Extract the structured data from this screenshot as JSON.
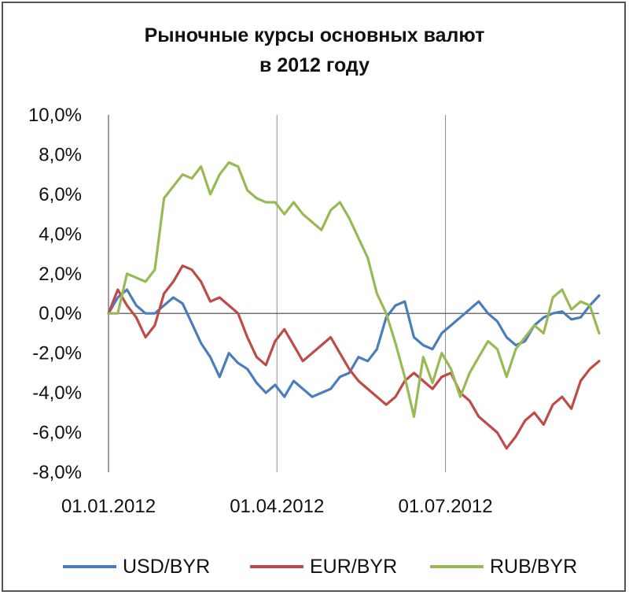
{
  "chart_data": {
    "type": "line",
    "title_lines": [
      "Рыночные курсы основных валют",
      "в 2012 году"
    ],
    "ylim": [
      -8,
      10
    ],
    "y_ticks": [
      10,
      8,
      6,
      4,
      2,
      0,
      -2,
      -4,
      -6,
      -8
    ],
    "y_tick_labels": [
      "10,0%",
      "8,0%",
      "6,0%",
      "4,0%",
      "2,0%",
      "0,0%",
      "-2,0%",
      "-4,0%",
      "-6,0%",
      "-8,0%"
    ],
    "x_ticks": [
      "2012-01-01",
      "2012-04-01",
      "2012-07-01"
    ],
    "x_tick_labels": [
      "01.01.2012",
      "01.04.2012",
      "01.07.2012"
    ],
    "xlim": [
      "2012-01-01",
      "2012-09-22"
    ],
    "grid": "vertical at x ticks",
    "legend_position": "bottom",
    "series": [
      {
        "name": "USD/BYR",
        "color": "#4a7ebb",
        "x": [
          "2012-01-01",
          "2012-01-06",
          "2012-01-11",
          "2012-01-16",
          "2012-01-21",
          "2012-01-26",
          "2012-01-31",
          "2012-02-05",
          "2012-02-10",
          "2012-02-15",
          "2012-02-20",
          "2012-02-25",
          "2012-03-01",
          "2012-03-06",
          "2012-03-11",
          "2012-03-16",
          "2012-03-21",
          "2012-03-26",
          "2012-03-31",
          "2012-04-05",
          "2012-04-10",
          "2012-04-15",
          "2012-04-20",
          "2012-04-25",
          "2012-04-30",
          "2012-05-05",
          "2012-05-10",
          "2012-05-15",
          "2012-05-20",
          "2012-05-25",
          "2012-05-30",
          "2012-06-04",
          "2012-06-09",
          "2012-06-14",
          "2012-06-19",
          "2012-06-24",
          "2012-06-29",
          "2012-07-04",
          "2012-07-09",
          "2012-07-14",
          "2012-07-19",
          "2012-07-24",
          "2012-07-29",
          "2012-08-03",
          "2012-08-08",
          "2012-08-13",
          "2012-08-18",
          "2012-08-23",
          "2012-08-28",
          "2012-09-02",
          "2012-09-07",
          "2012-09-12",
          "2012-09-17",
          "2012-09-22"
        ],
        "y": [
          0.0,
          0.8,
          1.2,
          0.4,
          0.0,
          0.0,
          0.4,
          0.8,
          0.5,
          -0.5,
          -1.5,
          -2.2,
          -3.2,
          -2.0,
          -2.5,
          -2.8,
          -3.5,
          -4.0,
          -3.6,
          -4.2,
          -3.4,
          -3.8,
          -4.2,
          -4.0,
          -3.8,
          -3.2,
          -3.0,
          -2.2,
          -2.4,
          -1.8,
          -0.2,
          0.4,
          0.6,
          -1.2,
          -1.6,
          -1.8,
          -1.0,
          -0.6,
          -0.2,
          0.2,
          0.6,
          0.0,
          -0.4,
          -1.2,
          -1.6,
          -1.4,
          -0.6,
          -0.2,
          0.0,
          0.1,
          -0.3,
          -0.2,
          0.4,
          0.9
        ]
      },
      {
        "name": "EUR/BYR",
        "color": "#be4b48",
        "x": [
          "2012-01-01",
          "2012-01-06",
          "2012-01-11",
          "2012-01-16",
          "2012-01-21",
          "2012-01-26",
          "2012-01-31",
          "2012-02-05",
          "2012-02-10",
          "2012-02-15",
          "2012-02-20",
          "2012-02-25",
          "2012-03-01",
          "2012-03-06",
          "2012-03-11",
          "2012-03-16",
          "2012-03-21",
          "2012-03-26",
          "2012-03-31",
          "2012-04-05",
          "2012-04-10",
          "2012-04-15",
          "2012-04-20",
          "2012-04-25",
          "2012-04-30",
          "2012-05-05",
          "2012-05-10",
          "2012-05-15",
          "2012-05-20",
          "2012-05-25",
          "2012-05-30",
          "2012-06-04",
          "2012-06-09",
          "2012-06-14",
          "2012-06-19",
          "2012-06-24",
          "2012-06-29",
          "2012-07-04",
          "2012-07-09",
          "2012-07-14",
          "2012-07-19",
          "2012-07-24",
          "2012-07-29",
          "2012-08-03",
          "2012-08-08",
          "2012-08-13",
          "2012-08-18",
          "2012-08-23",
          "2012-08-28",
          "2012-09-02",
          "2012-09-07",
          "2012-09-12",
          "2012-09-17",
          "2012-09-22"
        ],
        "y": [
          0.0,
          1.2,
          0.4,
          -0.2,
          -1.2,
          -0.6,
          1.0,
          1.6,
          2.4,
          2.2,
          1.6,
          0.6,
          0.8,
          0.4,
          0.0,
          -1.2,
          -2.2,
          -2.6,
          -1.4,
          -0.8,
          -1.6,
          -2.4,
          -2.0,
          -1.6,
          -1.2,
          -2.0,
          -2.8,
          -3.4,
          -3.8,
          -4.2,
          -4.6,
          -4.2,
          -3.4,
          -3.0,
          -3.4,
          -3.8,
          -3.2,
          -3.0,
          -4.0,
          -4.4,
          -5.2,
          -5.6,
          -6.0,
          -6.8,
          -6.2,
          -5.4,
          -5.0,
          -5.6,
          -4.6,
          -4.2,
          -4.8,
          -3.4,
          -2.8,
          -2.4
        ]
      },
      {
        "name": "RUB/BYR",
        "color": "#98b954",
        "x": [
          "2012-01-01",
          "2012-01-06",
          "2012-01-11",
          "2012-01-16",
          "2012-01-21",
          "2012-01-26",
          "2012-01-31",
          "2012-02-05",
          "2012-02-10",
          "2012-02-15",
          "2012-02-20",
          "2012-02-25",
          "2012-03-01",
          "2012-03-06",
          "2012-03-11",
          "2012-03-16",
          "2012-03-21",
          "2012-03-26",
          "2012-03-31",
          "2012-04-05",
          "2012-04-10",
          "2012-04-15",
          "2012-04-20",
          "2012-04-25",
          "2012-04-30",
          "2012-05-05",
          "2012-05-10",
          "2012-05-15",
          "2012-05-20",
          "2012-05-25",
          "2012-05-30",
          "2012-06-04",
          "2012-06-09",
          "2012-06-14",
          "2012-06-19",
          "2012-06-24",
          "2012-06-29",
          "2012-07-04",
          "2012-07-09",
          "2012-07-14",
          "2012-07-19",
          "2012-07-24",
          "2012-07-29",
          "2012-08-03",
          "2012-08-08",
          "2012-08-13",
          "2012-08-18",
          "2012-08-23",
          "2012-08-28",
          "2012-09-02",
          "2012-09-07",
          "2012-09-12",
          "2012-09-17",
          "2012-09-22"
        ],
        "y": [
          0.0,
          0.0,
          2.0,
          1.8,
          1.6,
          2.2,
          5.8,
          6.4,
          7.0,
          6.8,
          7.4,
          6.0,
          7.0,
          7.6,
          7.4,
          6.2,
          5.8,
          5.6,
          5.6,
          5.0,
          5.6,
          5.0,
          4.6,
          4.2,
          5.2,
          5.6,
          4.8,
          3.8,
          2.8,
          1.0,
          0.0,
          -1.5,
          -3.2,
          -5.2,
          -2.2,
          -3.5,
          -2.0,
          -2.8,
          -4.2,
          -3.0,
          -2.2,
          -1.4,
          -1.8,
          -3.2,
          -1.8,
          -1.2,
          -0.6,
          -1.0,
          0.8,
          1.2,
          0.2,
          0.6,
          0.4,
          -1.0
        ]
      }
    ]
  }
}
